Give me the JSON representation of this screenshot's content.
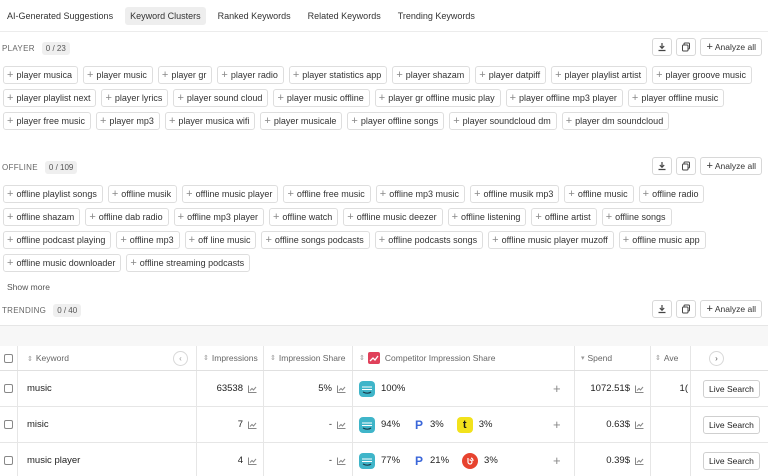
{
  "tabs": [
    "AI-Generated Suggestions",
    "Keyword Clusters",
    "Ranked Keywords",
    "Related Keywords",
    "Trending Keywords"
  ],
  "active_tab": 1,
  "analyze_label": "Analyze all",
  "show_more": "Show more",
  "sections": {
    "player": {
      "title": "PLAYER",
      "count": "0 / 23",
      "chips": [
        "player musica",
        "player music",
        "player gr",
        "player radio",
        "player statistics app",
        "player shazam",
        "player datpiff",
        "player playlist artist",
        "player groove music",
        "player playlist next",
        "player lyrics",
        "player sound cloud",
        "player music offline",
        "player gr offline music play",
        "player offline mp3 player",
        "player offline music",
        "player free music",
        "player mp3",
        "player musica wifi",
        "player musicale",
        "player offline songs",
        "player soundcloud dm",
        "player dm soundcloud"
      ]
    },
    "offline": {
      "title": "OFFLINE",
      "count": "0 / 109",
      "chips": [
        "offline playlist songs",
        "offline musik",
        "offline music player",
        "offline free music",
        "offline mp3 music",
        "offline musik mp3",
        "offline music",
        "offline radio",
        "offline shazam",
        "offline dab radio",
        "offline mp3 player",
        "offline watch",
        "offline music deezer",
        "offline listening",
        "offline artist",
        "offline songs",
        "offline podcast playing",
        "offline mp3",
        "off line music",
        "offline songs podcasts",
        "offline podcasts songs",
        "offline music player muzoff",
        "offline music app",
        "offline music downloader",
        "offline streaming podcasts"
      ]
    },
    "trending": {
      "title": "TRENDING",
      "count": "0 / 40"
    }
  },
  "table": {
    "headers": {
      "keyword": "Keyword",
      "impressions": "Impressions",
      "share": "Impression Share",
      "competitor": "Competitor Impression Share",
      "spend": "Spend",
      "ave": "Ave"
    },
    "live_label": "Live Search",
    "rows": [
      {
        "keyword": "music",
        "impressions": "63538",
        "share": "5%",
        "spend": "1072.51$",
        "ave": "1(",
        "competitors": [
          {
            "icon": "amazon-music",
            "pct": "100%"
          }
        ]
      },
      {
        "keyword": "misic",
        "impressions": "7",
        "share": "-",
        "spend": "0.63$",
        "ave": "",
        "competitors": [
          {
            "icon": "amazon-music",
            "pct": "94%"
          },
          {
            "icon": "pandora",
            "pct": "3%"
          },
          {
            "icon": "tumblr",
            "pct": "3%"
          }
        ]
      },
      {
        "keyword": "music player",
        "impressions": "4",
        "share": "-",
        "spend": "0.39$",
        "ave": "",
        "competitors": [
          {
            "icon": "amazon-music",
            "pct": "77%"
          },
          {
            "icon": "pandora",
            "pct": "21%"
          },
          {
            "icon": "red-app",
            "pct": "3%"
          }
        ]
      }
    ]
  },
  "colors": {
    "amazon": "#3fb5c9",
    "pandora": "#3a66d9",
    "tumblr": "#f2e21c",
    "red_app": "#e7432f"
  }
}
